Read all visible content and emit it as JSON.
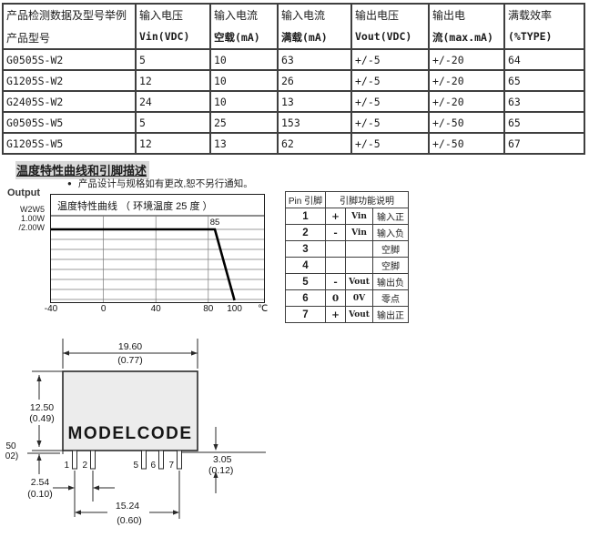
{
  "spec_table": {
    "columns": [
      {
        "line1": "产品检测数据及型号举例",
        "line2": "产品型号"
      },
      {
        "line1": "输入电压",
        "line2": "Vin(VDC)"
      },
      {
        "line1": "输入电流",
        "line2": "空载(mA)"
      },
      {
        "line1": "输入电流",
        "line2": "满载(mA)"
      },
      {
        "line1": "输出电压",
        "line2": "Vout(VDC)"
      },
      {
        "line1": "输出电",
        "line2": "流(max.mA)"
      },
      {
        "line1": "满载效率",
        "line2": "(%TYPE)"
      }
    ],
    "rows": [
      [
        "G0505S-W2",
        "5",
        "10",
        "63",
        "+/-5",
        "+/-20",
        "64"
      ],
      [
        "G1205S-W2",
        "12",
        "10",
        "26",
        "+/-5",
        "+/-20",
        "65"
      ],
      [
        "G2405S-W2",
        "24",
        "10",
        "13",
        "+/-5",
        "+/-20",
        "63"
      ],
      [
        "G0505S-W5",
        "5",
        "25",
        "153",
        "+/-5",
        "+/-50",
        "65"
      ],
      [
        "G1205S-W5",
        "12",
        "13",
        "62",
        "+/-5",
        "+/-50",
        "67"
      ]
    ]
  },
  "section": {
    "title": "温度特性曲线和引脚描述",
    "note": "产品设计与规格如有更改,恕不另行通知。"
  },
  "chart_data": {
    "type": "line",
    "title": "温度特性曲线 （ 环境温度 25 度 ）",
    "output_label": "Output",
    "series_labels": [
      "W2W5",
      "1.00W",
      "/2.00W"
    ],
    "x_ticks": [
      -40,
      0,
      40,
      80,
      100
    ],
    "grid_x_ticks": [
      0,
      40,
      80
    ],
    "x_unit": "℃",
    "xlim": [
      -40,
      122
    ],
    "points": [
      {
        "x": -40,
        "load_pct": 100
      },
      {
        "x": 85,
        "load_pct": 100
      },
      {
        "x": 100,
        "load_pct": 0
      }
    ],
    "annotation": "85",
    "grid": true
  },
  "pin_table": {
    "header": [
      "Pin 引脚",
      "引脚功能说明"
    ],
    "rows": [
      {
        "pin": "1",
        "sign": "+",
        "name": "Vin",
        "desc": "输入正"
      },
      {
        "pin": "2",
        "sign": "-",
        "name": "Vin",
        "desc": "输入负"
      },
      {
        "pin": "3",
        "sign": "",
        "name": "",
        "desc": "空脚"
      },
      {
        "pin": "4",
        "sign": "",
        "name": "",
        "desc": "空脚"
      },
      {
        "pin": "5",
        "sign": "-",
        "name": "Vout",
        "desc": "输出负"
      },
      {
        "pin": "6",
        "sign": "0",
        "name": "0V",
        "desc": "零点"
      },
      {
        "pin": "7",
        "sign": "+",
        "name": "Vout",
        "desc": "输出正"
      }
    ]
  },
  "drawing": {
    "model_label": "MODELCODE",
    "pin_numbers": [
      "1",
      "2",
      "5",
      "6",
      "7"
    ],
    "dims": {
      "width_mm": "19.60",
      "width_in": "(0.77)",
      "height_mm": "12.50",
      "height_in": "(0.49)",
      "standoff_mm": "50",
      "standoff_in": "02)",
      "pin_len_mm": "3.05",
      "pin_len_in": "(0.12)",
      "pitch_mm": "2.54",
      "pitch_in": "(0.10)",
      "span_mm": "15.24",
      "span_in": "(0.60)"
    }
  },
  "colors": {
    "line": "#1a1a1a",
    "grid": "#7a7a7a",
    "body_fill": "#ececec",
    "heading_bg": "#d9d9d9"
  }
}
